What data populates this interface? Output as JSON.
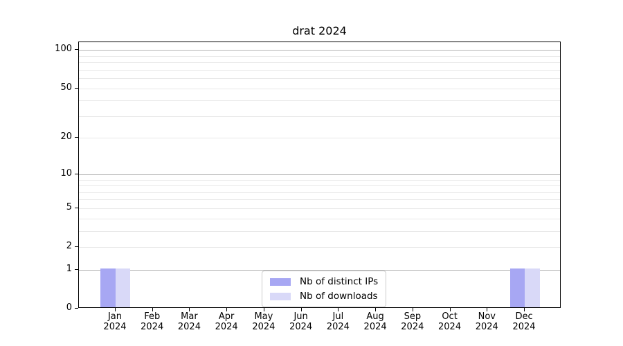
{
  "chart_data": {
    "type": "bar",
    "title": "drat 2024",
    "categories": [
      "Jan 2024",
      "Feb 2024",
      "Mar 2024",
      "Apr 2024",
      "May 2024",
      "Jun 2024",
      "Jul 2024",
      "Aug 2024",
      "Sep 2024",
      "Oct 2024",
      "Nov 2024",
      "Dec 2024"
    ],
    "series": [
      {
        "name": "Nb of distinct IPs",
        "color": "#a7a7f3",
        "values": [
          1,
          0,
          0,
          0,
          0,
          0,
          0,
          0,
          0,
          0,
          0,
          1
        ]
      },
      {
        "name": "Nb of downloads",
        "color": "#d9d9f8",
        "values": [
          1,
          0,
          0,
          0,
          0,
          0,
          0,
          0,
          0,
          0,
          0,
          1
        ]
      }
    ],
    "yscale": "log1p",
    "ylim": [
      0,
      115
    ],
    "yticks": [
      0,
      1,
      2,
      5,
      10,
      20,
      50,
      100
    ],
    "y_gridlines": {
      "major": [
        1,
        10,
        100
      ],
      "minor": [
        2,
        3,
        4,
        5,
        6,
        7,
        8,
        9,
        20,
        30,
        40,
        50,
        60,
        70,
        80,
        90
      ]
    },
    "xlabel": "",
    "ylabel": "",
    "grid": true,
    "legend_position": "lower center",
    "colors": {
      "grid_major": "#b3b3b3",
      "grid_minor": "#e8e8e8",
      "axis": "#000000",
      "background": "#ffffff"
    }
  }
}
